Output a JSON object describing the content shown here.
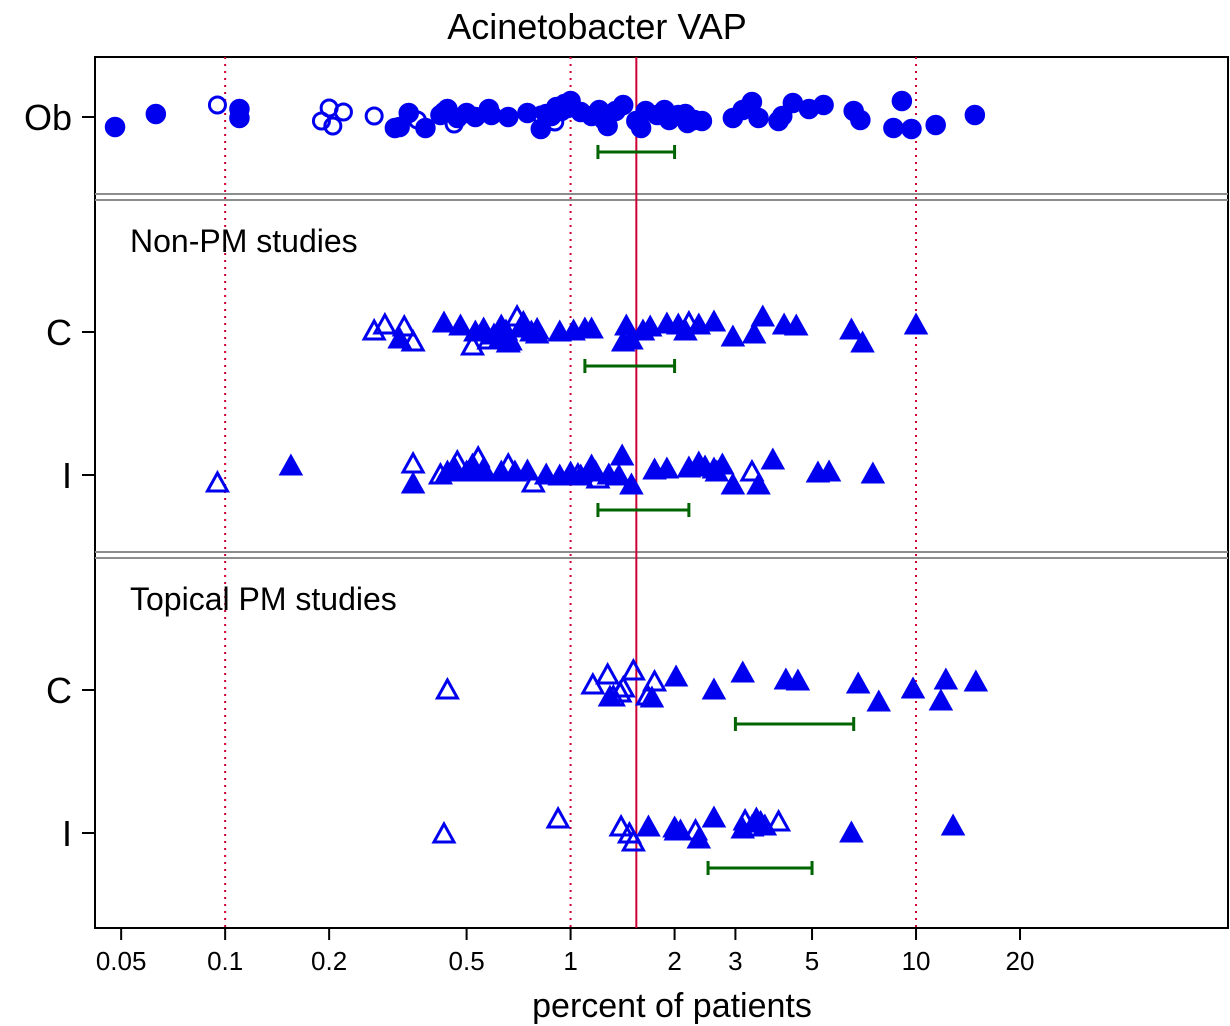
{
  "chart_data": {
    "type": "scatter",
    "title": "Acinetobacter VAP",
    "xlabel": "percent of patients",
    "ylabel": "",
    "x_scale": "log",
    "xlim": [
      0.042,
      80
    ],
    "x_ticks": [
      0.05,
      0.1,
      0.2,
      0.5,
      1,
      2,
      3,
      5,
      10,
      20
    ],
    "x_tick_labels": [
      "0.05",
      "0.1",
      "0.2",
      "0.5",
      "1",
      "2",
      "3",
      "5",
      "10",
      "20"
    ],
    "reference_lines_dotted": [
      0.1,
      1,
      10
    ],
    "reference_line_solid": 1.55,
    "legend": "none",
    "panels": [
      {
        "label": "",
        "groups": [
          {
            "row_label": "Ob",
            "marker": "circle",
            "ci": [
              1.2,
              2.0
            ],
            "filled": [
              [
                0.048,
                -1.0
              ],
              [
                0.063,
                0.3
              ],
              [
                0.11,
                0.8
              ],
              [
                0.11,
                -0.1
              ],
              [
                0.31,
                -1.1
              ],
              [
                0.32,
                -1.0
              ],
              [
                0.34,
                0.4
              ],
              [
                0.38,
                -1.1
              ],
              [
                0.42,
                0.2
              ],
              [
                0.43,
                0.5
              ],
              [
                0.44,
                0.8
              ],
              [
                0.47,
                -0.1
              ],
              [
                0.5,
                0.4
              ],
              [
                0.53,
                0.0
              ],
              [
                0.58,
                0.8
              ],
              [
                0.59,
                0.2
              ],
              [
                0.66,
                0.0
              ],
              [
                0.75,
                0.4
              ],
              [
                0.82,
                -1.2
              ],
              [
                0.85,
                0.3
              ],
              [
                0.88,
                0.1
              ],
              [
                0.91,
                1.0
              ],
              [
                0.94,
                0.6
              ],
              [
                0.96,
                1.3
              ],
              [
                0.98,
                0.9
              ],
              [
                1.0,
                1.6
              ],
              [
                1.07,
                0.5
              ],
              [
                1.15,
                0.1
              ],
              [
                1.21,
                0.7
              ],
              [
                1.25,
                -0.3
              ],
              [
                1.28,
                -0.9
              ],
              [
                1.35,
                0.6
              ],
              [
                1.42,
                1.2
              ],
              [
                1.55,
                -0.4
              ],
              [
                1.6,
                -1.1
              ],
              [
                1.65,
                0.6
              ],
              [
                1.78,
                0.2
              ],
              [
                1.87,
                0.7
              ],
              [
                1.93,
                -0.3
              ],
              [
                2.05,
                0.2
              ],
              [
                2.15,
                0.3
              ],
              [
                2.18,
                -0.6
              ],
              [
                2.28,
                -0.3
              ],
              [
                2.4,
                -0.4
              ],
              [
                2.95,
                -0.1
              ],
              [
                3.15,
                0.7
              ],
              [
                3.3,
                1.1
              ],
              [
                3.35,
                1.5
              ],
              [
                3.5,
                -0.1
              ],
              [
                4.0,
                -0.4
              ],
              [
                4.1,
                0.1
              ],
              [
                4.4,
                1.4
              ],
              [
                4.9,
                0.8
              ],
              [
                5.4,
                1.2
              ],
              [
                6.6,
                0.6
              ],
              [
                6.9,
                -0.3
              ],
              [
                8.6,
                -1.1
              ],
              [
                9.1,
                1.6
              ],
              [
                9.7,
                -1.2
              ],
              [
                11.4,
                -0.8
              ],
              [
                14.8,
                0.2
              ]
            ],
            "open": [
              [
                0.095,
                1.2
              ],
              [
                0.19,
                -0.4
              ],
              [
                0.2,
                0.9
              ],
              [
                0.205,
                -0.9
              ],
              [
                0.22,
                0.5
              ],
              [
                0.27,
                0.1
              ],
              [
                0.36,
                -0.3
              ],
              [
                0.46,
                -0.7
              ],
              [
                0.82,
                0.2
              ],
              [
                0.9,
                -0.5
              ]
            ]
          }
        ]
      },
      {
        "label": "Non-PM studies",
        "groups": [
          {
            "row_label": "C",
            "marker": "triangle",
            "ci": [
              1.1,
              2.0
            ],
            "filled": [
              [
                0.32,
                -0.7
              ],
              [
                0.43,
                0.9
              ],
              [
                0.48,
                0.6
              ],
              [
                0.53,
                0.0
              ],
              [
                0.56,
                0.3
              ],
              [
                0.6,
                -0.3
              ],
              [
                0.63,
                0.6
              ],
              [
                0.65,
                0.1
              ],
              [
                0.67,
                -0.9
              ],
              [
                0.72,
                0.4
              ],
              [
                0.77,
                0.0
              ],
              [
                0.8,
                -0.2
              ],
              [
                0.93,
                0.0
              ],
              [
                1.02,
                0.1
              ],
              [
                1.1,
                0.3
              ],
              [
                1.15,
                0.3
              ],
              [
                1.42,
                -1.0
              ],
              [
                1.45,
                0.6
              ],
              [
                1.5,
                -0.8
              ],
              [
                1.62,
                0.1
              ],
              [
                1.7,
                0.5
              ],
              [
                1.9,
                0.8
              ],
              [
                2.05,
                0.7
              ],
              [
                2.15,
                0.1
              ],
              [
                2.35,
                0.7
              ],
              [
                2.6,
                1.0
              ],
              [
                2.95,
                -0.5
              ],
              [
                3.4,
                -0.2
              ],
              [
                3.6,
                1.5
              ],
              [
                4.15,
                0.7
              ],
              [
                4.5,
                0.6
              ],
              [
                6.5,
                0.2
              ],
              [
                7.0,
                -1.1
              ],
              [
                10.0,
                0.7
              ]
            ],
            "open": [
              [
                0.27,
                0.1
              ],
              [
                0.29,
                0.7
              ],
              [
                0.33,
                0.5
              ],
              [
                0.35,
                -1.0
              ],
              [
                0.52,
                -1.4
              ],
              [
                0.58,
                -0.8
              ],
              [
                0.63,
                -0.5
              ],
              [
                0.66,
                -1.1
              ],
              [
                0.7,
                1.5
              ],
              [
                0.73,
                0.9
              ],
              [
                0.8,
                0.2
              ],
              [
                2.2,
                0.9
              ]
            ]
          },
          {
            "row_label": "I",
            "marker": "triangle",
            "ci": [
              1.2,
              2.2
            ],
            "filled": [
              [
                0.155,
                0.9
              ],
              [
                0.35,
                -0.9
              ],
              [
                0.44,
                0.3
              ],
              [
                0.46,
                0.8
              ],
              [
                0.5,
                0.3
              ],
              [
                0.52,
                1.0
              ],
              [
                0.56,
                0.6
              ],
              [
                0.63,
                0.3
              ],
              [
                0.69,
                0.3
              ],
              [
                0.75,
                0.4
              ],
              [
                0.85,
                0.0
              ],
              [
                0.93,
                -0.1
              ],
              [
                1.0,
                0.2
              ],
              [
                1.07,
                -0.1
              ],
              [
                1.15,
                0.9
              ],
              [
                1.18,
                0.3
              ],
              [
                1.29,
                0.0
              ],
              [
                1.38,
                -0.1
              ],
              [
                1.41,
                1.9
              ],
              [
                1.5,
                -1.0
              ],
              [
                1.75,
                0.5
              ],
              [
                1.9,
                0.6
              ],
              [
                2.2,
                0.7
              ],
              [
                2.35,
                1.2
              ],
              [
                2.45,
                0.8
              ],
              [
                2.6,
                0.6
              ],
              [
                2.65,
                0.3
              ],
              [
                2.75,
                1.0
              ],
              [
                2.95,
                -1.0
              ],
              [
                3.5,
                -1.0
              ],
              [
                3.85,
                1.5
              ],
              [
                5.2,
                0.2
              ],
              [
                5.6,
                0.3
              ],
              [
                7.5,
                0.1
              ]
            ],
            "open": [
              [
                0.095,
                -0.8
              ],
              [
                0.35,
                1.1
              ],
              [
                0.42,
                0.0
              ],
              [
                0.47,
                1.3
              ],
              [
                0.54,
                1.7
              ],
              [
                0.56,
                0.3
              ],
              [
                0.66,
                1.0
              ],
              [
                0.78,
                -0.8
              ],
              [
                1.05,
                0.0
              ],
              [
                1.2,
                -0.4
              ],
              [
                3.35,
                0.3
              ]
            ]
          }
        ]
      },
      {
        "label": "Topical PM studies",
        "groups": [
          {
            "row_label": "C",
            "marker": "triangle",
            "ci": [
              3.0,
              6.6
            ],
            "filled": [
              [
                1.3,
                -0.7
              ],
              [
                1.72,
                -0.8
              ],
              [
                2.02,
                1.3
              ],
              [
                2.6,
                0.0
              ],
              [
                3.15,
                1.7
              ],
              [
                4.2,
                1.0
              ],
              [
                4.55,
                0.9
              ],
              [
                6.8,
                0.6
              ],
              [
                7.8,
                -1.2
              ],
              [
                9.8,
                0.1
              ],
              [
                11.8,
                -1.1
              ],
              [
                12.2,
                1.0
              ],
              [
                14.9,
                0.8
              ]
            ],
            "open": [
              [
                0.44,
                0.0
              ],
              [
                1.16,
                0.5
              ],
              [
                1.28,
                1.5
              ],
              [
                1.33,
                -0.7
              ],
              [
                1.39,
                -0.3
              ],
              [
                1.42,
                0.2
              ],
              [
                1.52,
                1.9
              ],
              [
                1.67,
                -0.6
              ],
              [
                1.75,
                0.8
              ]
            ]
          },
          {
            "row_label": "I",
            "marker": "triangle",
            "ci": [
              2.5,
              5.0
            ],
            "filled": [
              [
                1.68,
                0.6
              ],
              [
                2.0,
                0.5
              ],
              [
                2.08,
                0.2
              ],
              [
                2.35,
                -0.6
              ],
              [
                2.6,
                1.5
              ],
              [
                3.15,
                0.4
              ],
              [
                3.45,
                1.4
              ],
              [
                3.65,
                0.7
              ],
              [
                6.5,
                0.0
              ],
              [
                12.8,
                0.7
              ]
            ],
            "open": [
              [
                0.43,
                -0.1
              ],
              [
                0.92,
                1.4
              ],
              [
                1.4,
                0.6
              ],
              [
                1.48,
                -0.1
              ],
              [
                1.52,
                -0.9
              ],
              [
                2.02,
                0.2
              ],
              [
                2.3,
                0.2
              ],
              [
                3.2,
                1.2
              ],
              [
                3.35,
                0.6
              ],
              [
                3.55,
                1.0
              ],
              [
                4.0,
                1.1
              ]
            ]
          }
        ]
      }
    ]
  }
}
